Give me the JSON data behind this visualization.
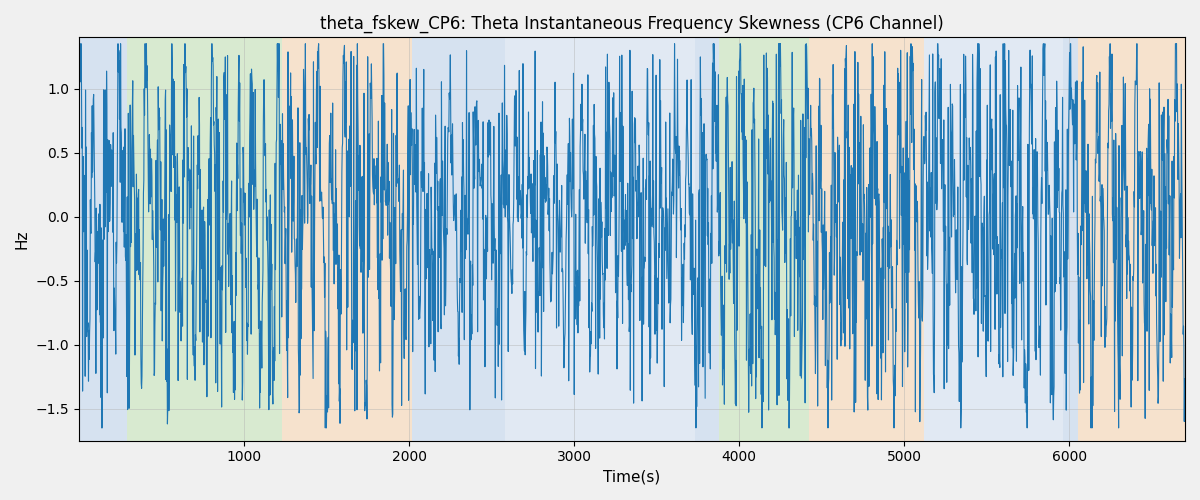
{
  "title": "theta_fskew_CP6: Theta Instantaneous Frequency Skewness (CP6 Channel)",
  "xlabel": "Time(s)",
  "ylabel": "Hz",
  "xlim": [
    0,
    6700
  ],
  "ylim": [
    -1.75,
    1.4
  ],
  "line_color": "#1f77b4",
  "line_width": 0.8,
  "bg_bands": [
    {
      "xmin": 0,
      "xmax": 290,
      "color": "#adc8e8",
      "alpha": 0.45
    },
    {
      "xmin": 290,
      "xmax": 1230,
      "color": "#b2d9a0",
      "alpha": 0.45
    },
    {
      "xmin": 1230,
      "xmax": 2020,
      "color": "#f5c99a",
      "alpha": 0.45
    },
    {
      "xmin": 2020,
      "xmax": 2580,
      "color": "#adc8e8",
      "alpha": 0.45
    },
    {
      "xmin": 2580,
      "xmax": 3730,
      "color": "#adc8e8",
      "alpha": 0.3
    },
    {
      "xmin": 3730,
      "xmax": 3880,
      "color": "#adc8e8",
      "alpha": 0.45
    },
    {
      "xmin": 3880,
      "xmax": 4420,
      "color": "#b2d9a0",
      "alpha": 0.45
    },
    {
      "xmin": 4420,
      "xmax": 4520,
      "color": "#f5c99a",
      "alpha": 0.45
    },
    {
      "xmin": 4520,
      "xmax": 5120,
      "color": "#f5c99a",
      "alpha": 0.45
    },
    {
      "xmin": 5120,
      "xmax": 5960,
      "color": "#adc8e8",
      "alpha": 0.3
    },
    {
      "xmin": 5960,
      "xmax": 6050,
      "color": "#adc8e8",
      "alpha": 0.45
    },
    {
      "xmin": 6050,
      "xmax": 6700,
      "color": "#f5c99a",
      "alpha": 0.45
    }
  ],
  "yticks": [
    -1.5,
    -1.0,
    -0.5,
    0.0,
    0.5,
    1.0
  ],
  "xticks": [
    1000,
    2000,
    3000,
    4000,
    5000,
    6000
  ],
  "grid_color": "#b0b0b0",
  "grid_alpha": 0.6,
  "title_fontsize": 12,
  "label_fontsize": 11,
  "seed": 42,
  "n_points": 3000,
  "t_start": 0,
  "t_end": 6700
}
